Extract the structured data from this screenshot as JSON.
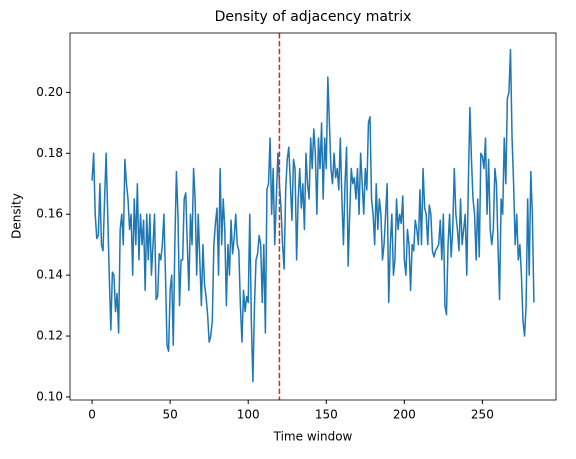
{
  "chart_data": {
    "type": "line",
    "title": "Density of adjacency matrix",
    "xlabel": "Time window",
    "ylabel": "Density",
    "x": [
      0,
      1,
      2,
      3,
      4,
      5,
      6,
      7,
      8,
      9,
      10,
      11,
      12,
      13,
      14,
      15,
      16,
      17,
      18,
      19,
      20,
      21,
      22,
      23,
      24,
      25,
      26,
      27,
      28,
      29,
      30,
      31,
      32,
      33,
      34,
      35,
      36,
      37,
      38,
      39,
      40,
      41,
      42,
      43,
      44,
      45,
      46,
      47,
      48,
      49,
      50,
      51,
      52,
      53,
      54,
      55,
      56,
      57,
      58,
      59,
      60,
      61,
      62,
      63,
      64,
      65,
      66,
      67,
      68,
      69,
      70,
      71,
      72,
      73,
      74,
      75,
      76,
      77,
      78,
      79,
      80,
      81,
      82,
      83,
      84,
      85,
      86,
      87,
      88,
      89,
      90,
      91,
      92,
      93,
      94,
      95,
      96,
      97,
      98,
      99,
      100,
      101,
      102,
      103,
      104,
      105,
      106,
      107,
      108,
      109,
      110,
      111,
      112,
      113,
      114,
      115,
      116,
      117,
      118,
      119,
      120,
      121,
      122,
      123,
      124,
      125,
      126,
      127,
      128,
      129,
      130,
      131,
      132,
      133,
      134,
      135,
      136,
      137,
      138,
      139,
      140,
      141,
      142,
      143,
      144,
      145,
      146,
      147,
      148,
      149,
      150,
      151,
      152,
      153,
      154,
      155,
      156,
      157,
      158,
      159,
      160,
      161,
      162,
      163,
      164,
      165,
      166,
      167,
      168,
      169,
      170,
      171,
      172,
      173,
      174,
      175,
      176,
      177,
      178,
      179,
      180,
      181,
      182,
      183,
      184,
      185,
      186,
      187,
      188,
      189,
      190,
      191,
      192,
      193,
      194,
      195,
      196,
      197,
      198,
      199,
      200,
      201,
      202,
      203,
      204,
      205,
      206,
      207,
      208,
      209,
      210,
      211,
      212,
      213,
      214,
      215,
      216,
      217,
      218,
      219,
      220,
      221,
      222,
      223,
      224,
      225,
      226,
      227,
      228,
      229,
      230,
      231,
      232,
      233,
      234,
      235,
      236,
      237,
      238,
      239,
      240,
      241,
      242,
      243,
      244,
      245,
      246,
      247,
      248,
      249,
      250,
      251,
      252,
      253,
      254,
      255,
      256,
      257,
      258,
      259,
      260,
      261,
      262,
      263,
      264,
      265,
      266,
      267,
      268,
      269,
      270,
      271,
      272,
      273,
      274,
      275,
      276,
      277,
      278,
      279,
      280,
      281,
      282,
      283
    ],
    "series": [
      {
        "color": "#1f77b4",
        "values": [
          0.171,
          0.18,
          0.16,
          0.152,
          0.153,
          0.17,
          0.15,
          0.148,
          0.165,
          0.18,
          0.16,
          0.14,
          0.122,
          0.141,
          0.14,
          0.128,
          0.134,
          0.121,
          0.155,
          0.16,
          0.15,
          0.178,
          0.17,
          0.165,
          0.155,
          0.16,
          0.14,
          0.165,
          0.15,
          0.17,
          0.145,
          0.16,
          0.15,
          0.158,
          0.135,
          0.16,
          0.145,
          0.16,
          0.14,
          0.15,
          0.16,
          0.132,
          0.133,
          0.147,
          0.145,
          0.15,
          0.16,
          0.14,
          0.117,
          0.115,
          0.135,
          0.14,
          0.117,
          0.15,
          0.174,
          0.16,
          0.13,
          0.145,
          0.145,
          0.165,
          0.167,
          0.15,
          0.135,
          0.16,
          0.15,
          0.175,
          0.165,
          0.14,
          0.16,
          0.145,
          0.13,
          0.15,
          0.137,
          0.133,
          0.127,
          0.118,
          0.12,
          0.125,
          0.15,
          0.157,
          0.162,
          0.14,
          0.175,
          0.15,
          0.165,
          0.155,
          0.13,
          0.15,
          0.14,
          0.158,
          0.147,
          0.152,
          0.16,
          0.15,
          0.148,
          0.13,
          0.118,
          0.135,
          0.128,
          0.133,
          0.131,
          0.16,
          0.125,
          0.105,
          0.13,
          0.145,
          0.147,
          0.153,
          0.15,
          0.131,
          0.15,
          0.121,
          0.168,
          0.17,
          0.185,
          0.16,
          0.175,
          0.15,
          0.165,
          0.18,
          0.17,
          0.162,
          0.15,
          0.142,
          0.168,
          0.178,
          0.182,
          0.17,
          0.158,
          0.178,
          0.175,
          0.145,
          0.165,
          0.175,
          0.162,
          0.17,
          0.155,
          0.18,
          0.17,
          0.165,
          0.185,
          0.175,
          0.188,
          0.18,
          0.16,
          0.185,
          0.175,
          0.19,
          0.165,
          0.185,
          0.175,
          0.205,
          0.19,
          0.175,
          0.17,
          0.18,
          0.172,
          0.175,
          0.168,
          0.185,
          0.165,
          0.15,
          0.17,
          0.182,
          0.143,
          0.16,
          0.175,
          0.17,
          0.172,
          0.165,
          0.175,
          0.16,
          0.18,
          0.17,
          0.16,
          0.175,
          0.168,
          0.19,
          0.192,
          0.165,
          0.16,
          0.15,
          0.17,
          0.155,
          0.165,
          0.16,
          0.145,
          0.15,
          0.16,
          0.17,
          0.131,
          0.15,
          0.16,
          0.14,
          0.145,
          0.165,
          0.155,
          0.16,
          0.157,
          0.166,
          0.145,
          0.14,
          0.155,
          0.15,
          0.135,
          0.15,
          0.148,
          0.158,
          0.155,
          0.15,
          0.168,
          0.15,
          0.175,
          0.162,
          0.16,
          0.15,
          0.163,
          0.16,
          0.148,
          0.146,
          0.148,
          0.149,
          0.15,
          0.158,
          0.145,
          0.16,
          0.13,
          0.127,
          0.15,
          0.16,
          0.146,
          0.155,
          0.175,
          0.16,
          0.155,
          0.148,
          0.165,
          0.15,
          0.155,
          0.16,
          0.14,
          0.17,
          0.195,
          0.178,
          0.165,
          0.16,
          0.145,
          0.165,
          0.146,
          0.18,
          0.179,
          0.175,
          0.185,
          0.16,
          0.178,
          0.155,
          0.15,
          0.155,
          0.175,
          0.17,
          0.15,
          0.132,
          0.165,
          0.16,
          0.185,
          0.17,
          0.198,
          0.2,
          0.214,
          0.185,
          0.17,
          0.15,
          0.16,
          0.145,
          0.15,
          0.14,
          0.125,
          0.12,
          0.13,
          0.165,
          0.14,
          0.174,
          0.16,
          0.131
        ]
      }
    ],
    "vline": {
      "x": 120,
      "color": "#d62728"
    },
    "xlim": [
      -14.15,
      297.15
    ],
    "xticks": [
      0,
      50,
      100,
      150,
      200,
      250
    ],
    "ylim": [
      0.099,
      0.2195
    ],
    "yticks": [
      {
        "value": 0.1,
        "label": "0.10"
      },
      0.12,
      0.14,
      0.16,
      0.18,
      {
        "value": 0.2,
        "label": "0.20"
      }
    ]
  }
}
